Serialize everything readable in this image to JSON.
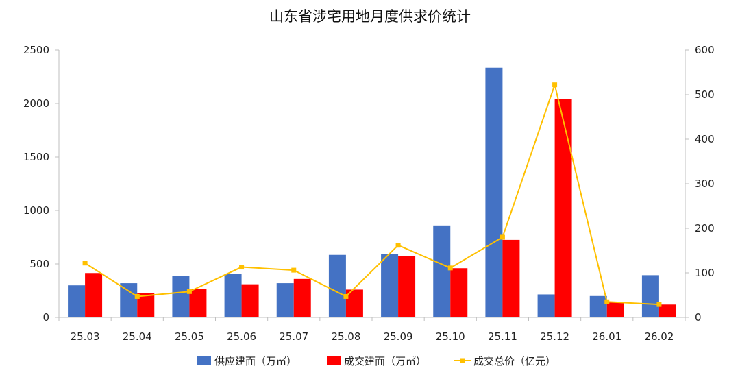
{
  "chart_data": {
    "type": "bar+line",
    "title": "山东省涉宅用地月度供求价统计",
    "categories": [
      "25.03",
      "25.04",
      "25.05",
      "25.06",
      "25.07",
      "25.08",
      "25.09",
      "25.10",
      "25.11",
      "25.12",
      "26.01",
      "26.02"
    ],
    "series": [
      {
        "name": "供应建面（万㎡）",
        "type": "bar",
        "axis": "left",
        "color": "#4472C4",
        "values": [
          300,
          320,
          390,
          410,
          320,
          585,
          590,
          860,
          2335,
          215,
          200,
          395
        ]
      },
      {
        "name": "成交建面（万㎡）",
        "type": "bar",
        "axis": "left",
        "color": "#FF0000",
        "values": [
          415,
          230,
          265,
          310,
          360,
          260,
          575,
          460,
          725,
          2040,
          140,
          120
        ]
      },
      {
        "name": "成交总价（亿元）",
        "type": "line",
        "axis": "right",
        "color": "#FFC000",
        "values": [
          122,
          47,
          58,
          113,
          106,
          47,
          162,
          111,
          180,
          522,
          35,
          29
        ]
      }
    ],
    "y_left": {
      "min": 0,
      "max": 2500,
      "ticks": [
        0,
        500,
        1000,
        1500,
        2000,
        2500
      ]
    },
    "y_right": {
      "min": 0,
      "max": 600,
      "ticks": [
        0,
        100,
        200,
        300,
        400,
        500,
        600
      ]
    },
    "legend_position": "bottom-center",
    "grid": false
  }
}
